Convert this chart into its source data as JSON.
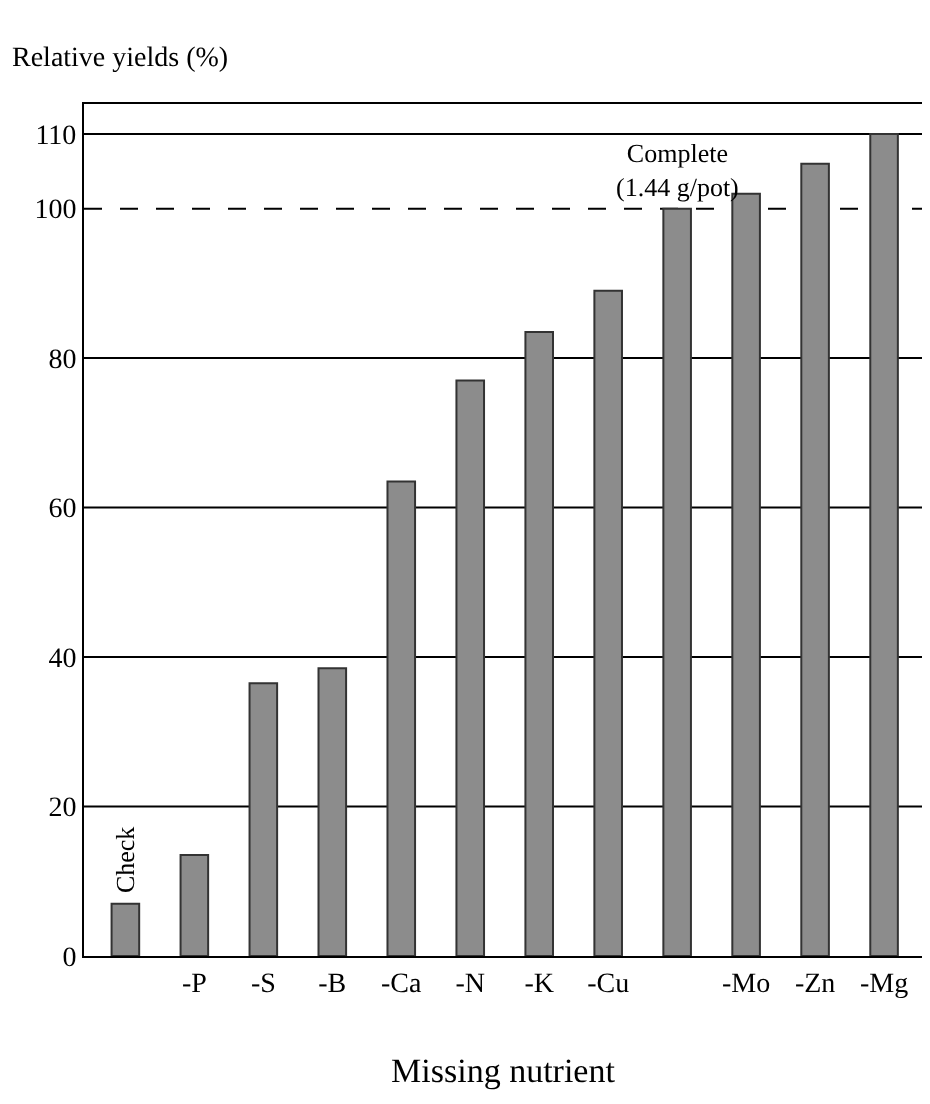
{
  "chart_data": {
    "type": "bar",
    "ylabel": "Relative yields (%)",
    "xlabel": "Missing nutrient",
    "categories": [
      null,
      "-P",
      "-S",
      "-B",
      "-Ca",
      "-N",
      "-K",
      "-Cu",
      null,
      "-Mo",
      "-Zn",
      "-Mg"
    ],
    "values": [
      7,
      13.5,
      36.5,
      38.5,
      63.5,
      77,
      83.5,
      89,
      100,
      102,
      106,
      110
    ],
    "annotations": [
      "Check",
      "Complete\n(1.44 g/pot)"
    ],
    "color": "#8c8c8c",
    "ylim": [
      0,
      114
    ],
    "yticks": [
      0,
      20,
      40,
      60,
      80,
      100,
      110
    ],
    "grid": "y",
    "ref_lines": [
      {
        "axis": "y",
        "value": 100,
        "line_style": "dashed"
      }
    ],
    "legend": false
  }
}
